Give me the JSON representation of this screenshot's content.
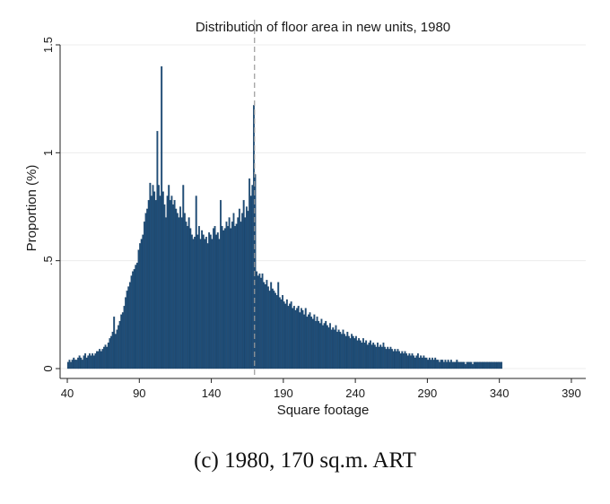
{
  "chart_data": {
    "type": "bar",
    "title": "Distribution of floor area in new units, 1980",
    "xlabel": "Square footage",
    "ylabel": "Proportion (%)",
    "xlim": [
      35,
      400
    ],
    "ylim": [
      0,
      1.5
    ],
    "x_ticks": [
      40,
      90,
      140,
      190,
      240,
      290,
      340,
      390
    ],
    "x_tick_labels": [
      "40",
      "90",
      "140",
      "190",
      "240",
      "290",
      "340",
      "390"
    ],
    "y_ticks": [
      0,
      0.5,
      1,
      1.5
    ],
    "y_tick_labels": [
      "0",
      ".5",
      "1",
      "1.5"
    ],
    "reference_line": {
      "x": 170,
      "style": "dashed"
    },
    "bar_color": "#1f4e79",
    "grid": "horizontal",
    "bin_width": 1,
    "x_start": 40,
    "values": [
      0.03,
      0.04,
      0.03,
      0.04,
      0.05,
      0.04,
      0.04,
      0.05,
      0.06,
      0.05,
      0.04,
      0.06,
      0.07,
      0.05,
      0.06,
      0.07,
      0.06,
      0.07,
      0.06,
      0.07,
      0.08,
      0.08,
      0.09,
      0.08,
      0.09,
      0.1,
      0.11,
      0.1,
      0.12,
      0.14,
      0.15,
      0.17,
      0.24,
      0.16,
      0.18,
      0.2,
      0.22,
      0.25,
      0.26,
      0.29,
      0.33,
      0.36,
      0.38,
      0.4,
      0.43,
      0.45,
      0.46,
      0.48,
      0.49,
      0.55,
      0.58,
      0.6,
      0.62,
      0.68,
      0.72,
      0.74,
      0.78,
      0.86,
      0.8,
      0.85,
      0.82,
      0.78,
      1.1,
      0.85,
      0.8,
      1.4,
      0.82,
      0.76,
      0.7,
      0.8,
      0.85,
      0.78,
      0.8,
      0.76,
      0.78,
      0.74,
      0.72,
      0.7,
      0.75,
      0.7,
      0.85,
      0.72,
      0.68,
      0.66,
      0.7,
      0.65,
      0.62,
      0.6,
      0.61,
      0.8,
      0.62,
      0.66,
      0.6,
      0.64,
      0.62,
      0.6,
      0.61,
      0.58,
      0.63,
      0.62,
      0.6,
      0.65,
      0.66,
      0.62,
      0.63,
      0.6,
      0.78,
      0.66,
      0.64,
      0.65,
      0.68,
      0.66,
      0.7,
      0.65,
      0.68,
      0.72,
      0.66,
      0.67,
      0.7,
      0.74,
      0.68,
      0.72,
      0.78,
      0.7,
      0.75,
      0.73,
      0.88,
      0.8,
      0.85,
      1.22,
      0.9,
      0.45,
      0.43,
      0.44,
      0.42,
      0.44,
      0.4,
      0.39,
      0.41,
      0.38,
      0.36,
      0.4,
      0.37,
      0.36,
      0.35,
      0.34,
      0.4,
      0.33,
      0.32,
      0.34,
      0.31,
      0.3,
      0.32,
      0.29,
      0.3,
      0.31,
      0.28,
      0.29,
      0.27,
      0.28,
      0.29,
      0.26,
      0.28,
      0.27,
      0.25,
      0.28,
      0.24,
      0.25,
      0.26,
      0.24,
      0.23,
      0.25,
      0.22,
      0.24,
      0.22,
      0.21,
      0.23,
      0.2,
      0.21,
      0.22,
      0.2,
      0.19,
      0.21,
      0.18,
      0.19,
      0.18,
      0.2,
      0.17,
      0.18,
      0.17,
      0.16,
      0.18,
      0.16,
      0.15,
      0.17,
      0.15,
      0.14,
      0.16,
      0.15,
      0.14,
      0.15,
      0.13,
      0.14,
      0.13,
      0.12,
      0.14,
      0.12,
      0.13,
      0.11,
      0.12,
      0.13,
      0.11,
      0.12,
      0.11,
      0.1,
      0.12,
      0.1,
      0.11,
      0.1,
      0.12,
      0.1,
      0.09,
      0.1,
      0.09,
      0.1,
      0.09,
      0.08,
      0.09,
      0.08,
      0.09,
      0.08,
      0.07,
      0.08,
      0.07,
      0.08,
      0.07,
      0.06,
      0.07,
      0.06,
      0.07,
      0.06,
      0.05,
      0.06,
      0.07,
      0.05,
      0.06,
      0.05,
      0.06,
      0.05,
      0.05,
      0.04,
      0.05,
      0.04,
      0.05,
      0.04,
      0.05,
      0.04,
      0.04,
      0.03,
      0.04,
      0.04,
      0.03,
      0.04,
      0.03,
      0.04,
      0.03,
      0.04,
      0.03,
      0.03,
      0.03,
      0.04,
      0.03,
      0.03,
      0.03,
      0.03,
      0.03,
      0.02,
      0.03,
      0.03,
      0.03,
      0.03,
      0.02,
      0.03,
      0.03,
      0.03,
      0.03,
      0.03,
      0.03,
      0.03,
      0.03,
      0.03,
      0.03,
      0.03,
      0.03,
      0.03,
      0.03,
      0.03,
      0.03,
      0.03,
      0.03,
      0.03,
      0.03
    ]
  },
  "caption": "(c) 1980, 170 sq.m. ART"
}
